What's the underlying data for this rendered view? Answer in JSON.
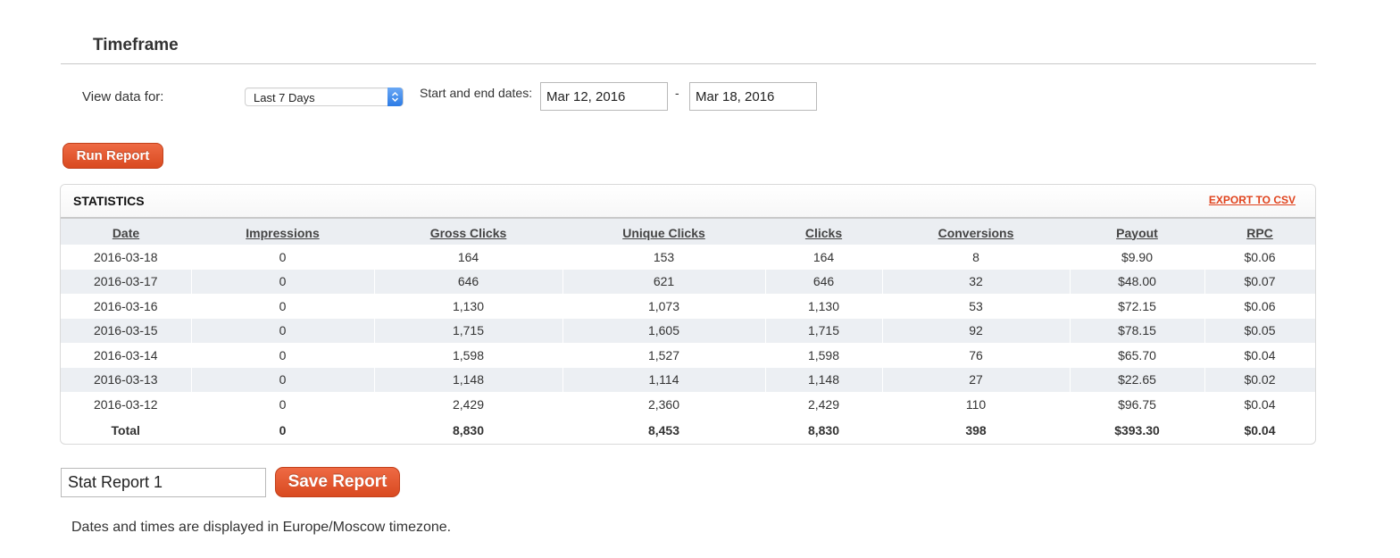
{
  "timeframe": {
    "heading": "Timeframe",
    "view_label": "View data for:",
    "view_selected": "Last 7 Days",
    "dates_label": "Start and end dates:",
    "start_date": "Mar 12, 2016",
    "end_date": "Mar 18, 2016",
    "separator": "-"
  },
  "actions": {
    "run_report": "Run Report",
    "save_report": "Save Report",
    "report_name": "Stat Report 1"
  },
  "statistics": {
    "title": "STATISTICS",
    "export_label": "EXPORT TO CSV",
    "columns": [
      "Date",
      "Impressions",
      "Gross Clicks",
      "Unique Clicks",
      "Clicks",
      "Conversions",
      "Payout",
      "RPC"
    ],
    "rows": [
      [
        "2016-03-18",
        "0",
        "164",
        "153",
        "164",
        "8",
        "$9.90",
        "$0.06"
      ],
      [
        "2016-03-17",
        "0",
        "646",
        "621",
        "646",
        "32",
        "$48.00",
        "$0.07"
      ],
      [
        "2016-03-16",
        "0",
        "1,130",
        "1,073",
        "1,130",
        "53",
        "$72.15",
        "$0.06"
      ],
      [
        "2016-03-15",
        "0",
        "1,715",
        "1,605",
        "1,715",
        "92",
        "$78.15",
        "$0.05"
      ],
      [
        "2016-03-14",
        "0",
        "1,598",
        "1,527",
        "1,598",
        "76",
        "$65.70",
        "$0.04"
      ],
      [
        "2016-03-13",
        "0",
        "1,148",
        "1,114",
        "1,148",
        "27",
        "$22.65",
        "$0.02"
      ],
      [
        "2016-03-12",
        "0",
        "2,429",
        "2,360",
        "2,429",
        "110",
        "$96.75",
        "$0.04"
      ]
    ],
    "total": [
      "Total",
      "0",
      "8,830",
      "8,453",
      "8,830",
      "398",
      "$393.30",
      "$0.04"
    ]
  },
  "footer": {
    "timezone_note": "Dates and times are displayed in Europe/Moscow timezone."
  },
  "colors": {
    "accent": "#e0431d",
    "row_stripe": "#eceff3"
  }
}
